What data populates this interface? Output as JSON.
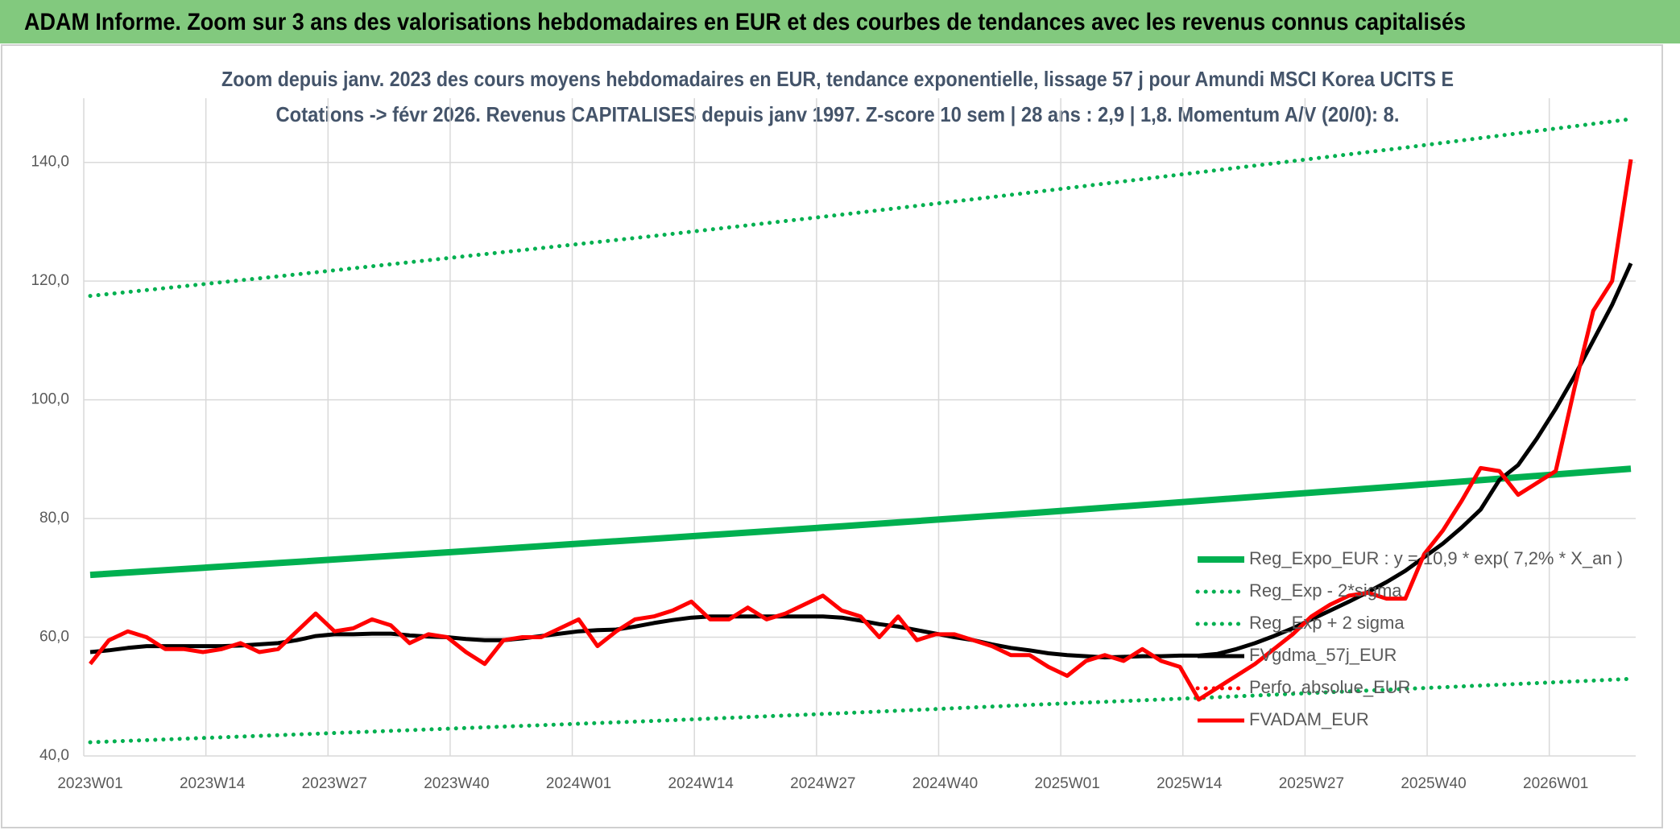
{
  "header": {
    "title": "ADAM Informe. Zoom sur 3 ans des valorisations hebdomadaires en EUR et des courbes de tendances avec les revenus connus capitalisés"
  },
  "chart_data": {
    "type": "line",
    "title": "Zoom depuis janv. 2023 des cours moyens hebdomadaires en EUR, tendance exponentielle, lissage 57 j pour Amundi MSCI Korea UCITS E",
    "subtitle": "Cotations -> févr 2026. Revenus CAPITALISES depuis janv 1997. Z-score 10 sem | 28 ans : 2,9 | 1,8. Momentum A/V (20/0): 8.",
    "xlim": [
      0,
      164
    ],
    "xticks": [
      {
        "value": 0,
        "label": "2023W01"
      },
      {
        "value": 13,
        "label": "2023W14"
      },
      {
        "value": 26,
        "label": "2023W27"
      },
      {
        "value": 39,
        "label": "2023W40"
      },
      {
        "value": 52,
        "label": "2024W01"
      },
      {
        "value": 65,
        "label": "2024W14"
      },
      {
        "value": 78,
        "label": "2024W27"
      },
      {
        "value": 91,
        "label": "2024W40"
      },
      {
        "value": 104,
        "label": "2025W01"
      },
      {
        "value": 117,
        "label": "2025W14"
      },
      {
        "value": 130,
        "label": "2025W27"
      },
      {
        "value": 143,
        "label": "2025W40"
      },
      {
        "value": 156,
        "label": "2026W01"
      }
    ],
    "ylim": [
      40,
      150
    ],
    "yticks": [
      {
        "value": 40,
        "label": "40,0"
      },
      {
        "value": 60,
        "label": "60,0"
      },
      {
        "value": 80,
        "label": "80,0"
      },
      {
        "value": 100,
        "label": "100,0"
      },
      {
        "value": 120,
        "label": "120,0"
      },
      {
        "value": 140,
        "label": "140,0"
      }
    ],
    "grid": true,
    "legend": "right",
    "series": [
      {
        "name": "Reg_Expo_EUR : y = 10,9 * exp( 7,2% *  X_an )",
        "color": "#00b050",
        "style": "solid",
        "x": [
          0,
          20,
          40,
          60,
          80,
          100,
          120,
          140,
          160,
          164
        ],
        "values": [
          70.5,
          72.5,
          74.5,
          76.6,
          78.7,
          80.9,
          83.2,
          85.5,
          87.9,
          88.4
        ]
      },
      {
        "name": "Reg_Exp - 2*sigma",
        "color": "#00b050",
        "style": "dotted",
        "x": [
          0,
          20,
          40,
          60,
          80,
          100,
          120,
          140,
          160,
          164
        ],
        "values": [
          42.3,
          43.5,
          44.7,
          45.9,
          47.2,
          48.6,
          49.9,
          51.3,
          52.7,
          53.0
        ]
      },
      {
        "name": "Reg_Exp + 2 sigma",
        "color": "#00b050",
        "style": "dotted",
        "x": [
          0,
          20,
          40,
          60,
          80,
          100,
          120,
          140,
          160,
          164
        ],
        "values": [
          117.5,
          120.8,
          124.2,
          127.6,
          131.2,
          134.9,
          138.7,
          142.5,
          146.5,
          147.3
        ]
      },
      {
        "name": "FVgdma_57j_EUR",
        "color": "#000000",
        "style": "solid",
        "x": [
          0,
          2,
          4,
          6,
          8,
          10,
          12,
          14,
          16,
          18,
          20,
          22,
          24,
          26,
          28,
          30,
          32,
          34,
          36,
          38,
          40,
          42,
          44,
          46,
          48,
          50,
          52,
          54,
          56,
          58,
          60,
          62,
          64,
          66,
          68,
          70,
          72,
          74,
          76,
          78,
          80,
          82,
          84,
          86,
          88,
          90,
          92,
          94,
          96,
          98,
          100,
          102,
          104,
          106,
          108,
          110,
          112,
          114,
          116,
          118,
          120,
          122,
          124,
          126,
          128,
          130,
          132,
          134,
          136,
          138,
          140,
          142,
          144,
          146,
          148,
          150,
          152,
          154,
          156,
          158,
          160,
          162,
          164
        ],
        "values": [
          57.5,
          57.8,
          58.2,
          58.5,
          58.5,
          58.5,
          58.5,
          58.5,
          58.6,
          58.8,
          59,
          59.5,
          60.2,
          60.5,
          60.5,
          60.6,
          60.6,
          60.3,
          60.1,
          60,
          59.7,
          59.5,
          59.5,
          59.8,
          60.2,
          60.6,
          61,
          61.2,
          61.3,
          61.8,
          62.4,
          62.9,
          63.3,
          63.5,
          63.5,
          63.5,
          63.5,
          63.5,
          63.5,
          63.5,
          63.3,
          62.8,
          62.2,
          61.8,
          61.2,
          60.6,
          60,
          59.5,
          58.8,
          58.2,
          57.8,
          57.3,
          57,
          56.8,
          56.6,
          56.7,
          56.8,
          56.8,
          56.9,
          56.9,
          57.2,
          58,
          59,
          60.2,
          61.5,
          63,
          64.5,
          66,
          67.6,
          69.3,
          71.2,
          73.5,
          75.8,
          78.5,
          81.5,
          86.5,
          89,
          93.5,
          98.5,
          104,
          110,
          116,
          123
        ]
      },
      {
        "name": "Perfo. absolue_EUR",
        "color": "#ff0000",
        "style": "dotted",
        "x": [],
        "values": []
      },
      {
        "name": "FVADAM_EUR",
        "color": "#ff0000",
        "style": "solid",
        "x": [
          0,
          2,
          4,
          6,
          8,
          10,
          12,
          14,
          16,
          18,
          20,
          22,
          24,
          26,
          28,
          30,
          32,
          34,
          36,
          38,
          40,
          42,
          44,
          46,
          48,
          50,
          52,
          54,
          56,
          58,
          60,
          62,
          64,
          66,
          68,
          70,
          72,
          74,
          76,
          78,
          80,
          82,
          84,
          86,
          88,
          90,
          92,
          94,
          96,
          98,
          100,
          102,
          104,
          106,
          108,
          110,
          112,
          114,
          116,
          118,
          120,
          122,
          124,
          126,
          128,
          130,
          132,
          134,
          136,
          138,
          140,
          142,
          144,
          146,
          148,
          150,
          152,
          154,
          156,
          158,
          160,
          162,
          164
        ],
        "values": [
          55.5,
          59.5,
          61,
          60,
          58,
          58,
          57.5,
          58,
          59,
          57.5,
          58,
          61,
          64,
          61,
          61.5,
          63,
          62,
          59,
          60.5,
          60,
          57.5,
          55.5,
          59.5,
          60,
          60,
          61.5,
          63,
          58.5,
          61,
          63,
          63.5,
          64.5,
          66,
          63,
          63,
          65,
          63,
          64,
          65.5,
          67,
          64.5,
          63.5,
          60,
          63.5,
          59.5,
          60.5,
          60.5,
          59.5,
          58.5,
          57,
          57,
          55,
          53.5,
          56,
          57,
          56,
          58,
          56,
          55,
          49.5,
          51.5,
          53.5,
          55.5,
          58,
          60.5,
          63.5,
          65.5,
          67,
          67.5,
          66.5,
          66.5,
          74,
          78,
          83,
          88.5,
          88,
          84,
          86,
          88,
          102,
          115,
          120,
          140.5
        ]
      }
    ]
  }
}
